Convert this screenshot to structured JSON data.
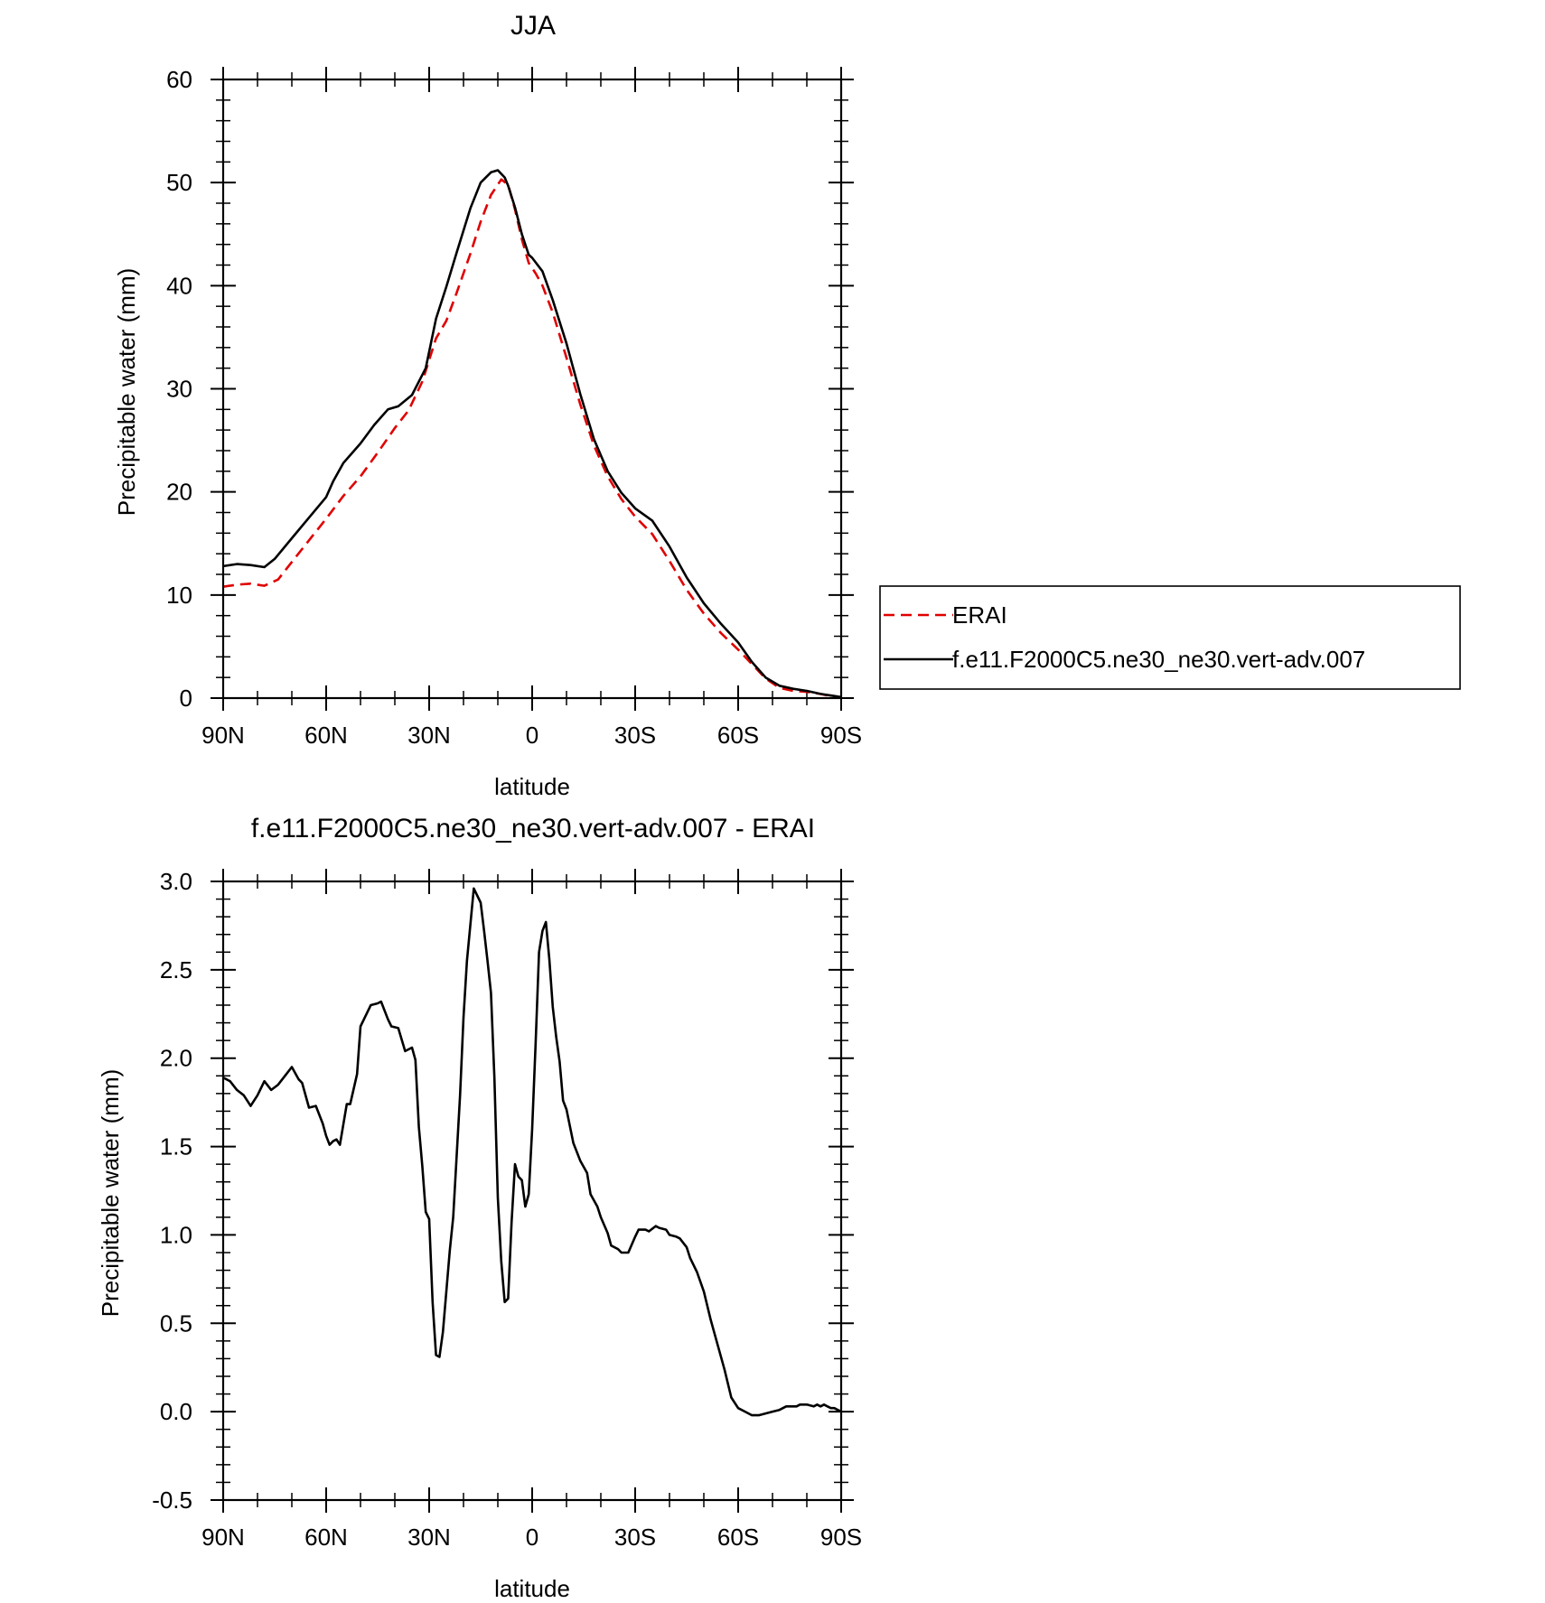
{
  "chart_data": [
    {
      "type": "line",
      "title": "JJA",
      "xlabel": "latitude",
      "ylabel": "Precipitable water (mm)",
      "xlim": [
        90,
        -90
      ],
      "ylim": [
        0,
        60
      ],
      "x_ticks": [
        {
          "value": 90,
          "label": "90N"
        },
        {
          "value": 60,
          "label": "60N"
        },
        {
          "value": 30,
          "label": "30N"
        },
        {
          "value": 0,
          "label": "0"
        },
        {
          "value": -30,
          "label": "30S"
        },
        {
          "value": -60,
          "label": "60S"
        },
        {
          "value": -90,
          "label": "90S"
        }
      ],
      "y_ticks": [
        {
          "value": 0,
          "label": "0"
        },
        {
          "value": 10,
          "label": "10"
        },
        {
          "value": 20,
          "label": "20"
        },
        {
          "value": 30,
          "label": "30"
        },
        {
          "value": 40,
          "label": "40"
        },
        {
          "value": 50,
          "label": "50"
        },
        {
          "value": 60,
          "label": "60"
        }
      ],
      "legend": {
        "placement": "right",
        "entries": [
          "ERAI",
          "f.e11.F2000C5.ne30_ne30.vert-adv.007"
        ]
      },
      "series": [
        {
          "name": "ERAI",
          "color": "#e00000",
          "dash": "dashed",
          "x": [
            90,
            86,
            82,
            78,
            74,
            70,
            65,
            60,
            55,
            50,
            45,
            40,
            36,
            32,
            28,
            25,
            22,
            18,
            15,
            12,
            9,
            7,
            5,
            3,
            1,
            -1,
            -3,
            -6,
            -10,
            -14,
            -18,
            -22,
            -26,
            -30,
            -35,
            -40,
            -45,
            -50,
            -55,
            -60,
            -64,
            -68,
            -72,
            -76,
            -80,
            -84,
            -88,
            -90
          ],
          "y": [
            10.8,
            11.0,
            11.1,
            10.9,
            11.5,
            13.2,
            15.3,
            17.4,
            19.6,
            21.5,
            23.8,
            26.2,
            27.9,
            30.7,
            34.9,
            36.6,
            39.3,
            43.1,
            46.2,
            48.8,
            50.3,
            49.8,
            47.4,
            44.5,
            42.2,
            41.2,
            40.0,
            37.4,
            33.0,
            28.5,
            24.5,
            21.5,
            19.3,
            17.6,
            15.9,
            13.3,
            10.5,
            8.2,
            6.3,
            4.7,
            3.3,
            1.9,
            1.0,
            0.7,
            0.6,
            0.4,
            0.1,
            0.1
          ]
        },
        {
          "name": "f.e11.F2000C5.ne30_ne30.vert-adv.007",
          "color": "#000000",
          "dash": "solid",
          "x": [
            90,
            86,
            82,
            78,
            75,
            70,
            65,
            60,
            58,
            55,
            50,
            46,
            42,
            39,
            35,
            31,
            28,
            25,
            22,
            18,
            15,
            12,
            10,
            8,
            7,
            5,
            3,
            1,
            0,
            -3,
            -6,
            -10,
            -14,
            -18,
            -22,
            -26,
            -30,
            -35,
            -40,
            -45,
            -50,
            -55,
            -60,
            -64,
            -68,
            -72,
            -76,
            -80,
            -84,
            -88,
            -90
          ],
          "y": [
            12.8,
            13.0,
            12.9,
            12.7,
            13.5,
            15.5,
            17.5,
            19.5,
            21.0,
            22.8,
            24.7,
            26.5,
            28.0,
            28.3,
            29.4,
            32.0,
            36.8,
            39.9,
            43.2,
            47.5,
            50.0,
            51.0,
            51.2,
            50.5,
            49.7,
            47.6,
            45.0,
            43.0,
            42.7,
            41.4,
            38.6,
            34.4,
            29.5,
            25.1,
            22.0,
            19.9,
            18.4,
            17.2,
            14.7,
            11.7,
            9.2,
            7.2,
            5.4,
            3.5,
            2.0,
            1.2,
            0.9,
            0.7,
            0.4,
            0.2,
            0.1
          ]
        }
      ]
    },
    {
      "type": "line",
      "title": "f.e11.F2000C5.ne30_ne30.vert-adv.007 - ERAI",
      "xlabel": "latitude",
      "ylabel": "Precipitable water (mm)",
      "xlim": [
        90,
        -90
      ],
      "ylim": [
        -0.5,
        3.0
      ],
      "x_ticks": [
        {
          "value": 90,
          "label": "90N"
        },
        {
          "value": 60,
          "label": "60N"
        },
        {
          "value": 30,
          "label": "30N"
        },
        {
          "value": 0,
          "label": "0"
        },
        {
          "value": -30,
          "label": "30S"
        },
        {
          "value": -60,
          "label": "60S"
        },
        {
          "value": -90,
          "label": "90S"
        }
      ],
      "y_ticks": [
        {
          "value": -0.5,
          "label": "-0.5"
        },
        {
          "value": 0.0,
          "label": "0.0"
        },
        {
          "value": 0.5,
          "label": "0.5"
        },
        {
          "value": 1.0,
          "label": "1.0"
        },
        {
          "value": 1.5,
          "label": "1.5"
        },
        {
          "value": 2.0,
          "label": "2.0"
        },
        {
          "value": 2.5,
          "label": "2.5"
        },
        {
          "value": 3.0,
          "label": "3.0"
        }
      ],
      "series": [
        {
          "color": "#000000",
          "dash": "solid",
          "x": [
            90,
            88,
            86,
            84,
            82,
            80,
            78,
            76,
            74,
            72,
            70,
            68,
            67,
            65,
            63,
            61,
            60,
            59,
            58,
            57,
            56,
            54,
            53,
            51,
            50,
            48,
            47,
            45,
            44,
            42,
            41,
            39,
            37,
            35,
            34,
            33,
            32,
            31,
            30,
            29,
            28,
            27,
            26,
            24,
            23,
            21,
            20,
            19,
            17,
            15,
            14,
            13,
            12,
            11,
            10,
            9,
            8,
            7,
            6,
            5,
            4,
            3,
            2,
            1,
            0,
            -1,
            -2,
            -3,
            -4,
            -5,
            -6,
            -7,
            -8,
            -9,
            -10,
            -12,
            -14,
            -16,
            -17,
            -19,
            -20,
            -22,
            -23,
            -25,
            -26,
            -28,
            -30,
            -31,
            -33,
            -34,
            -36,
            -37,
            -39,
            -40,
            -42,
            -43,
            -45,
            -46,
            -48,
            -50,
            -52,
            -54,
            -56,
            -58,
            -60,
            -62,
            -64,
            -66,
            -68,
            -70,
            -72,
            -74,
            -75,
            -76,
            -77,
            -78,
            -80,
            -82,
            -83,
            -84,
            -85,
            -86,
            -87,
            -88,
            -89,
            -90
          ],
          "y": [
            1.89,
            1.87,
            1.82,
            1.79,
            1.73,
            1.79,
            1.87,
            1.82,
            1.85,
            1.9,
            1.95,
            1.88,
            1.86,
            1.72,
            1.73,
            1.63,
            1.56,
            1.51,
            1.53,
            1.54,
            1.51,
            1.74,
            1.74,
            1.91,
            2.18,
            2.26,
            2.3,
            2.31,
            2.32,
            2.22,
            2.18,
            2.17,
            2.04,
            2.06,
            1.99,
            1.61,
            1.39,
            1.13,
            1.09,
            0.62,
            0.32,
            0.31,
            0.45,
            0.91,
            1.1,
            1.79,
            2.23,
            2.55,
            2.96,
            2.88,
            2.72,
            2.55,
            2.37,
            1.89,
            1.21,
            0.85,
            0.62,
            0.64,
            1.07,
            1.4,
            1.33,
            1.31,
            1.16,
            1.23,
            1.6,
            2.08,
            2.6,
            2.72,
            2.77,
            2.56,
            2.29,
            2.12,
            1.98,
            1.76,
            1.71,
            1.52,
            1.42,
            1.35,
            1.23,
            1.16,
            1.1,
            1.01,
            0.94,
            0.92,
            0.9,
            0.9,
            0.99,
            1.03,
            1.03,
            1.02,
            1.05,
            1.04,
            1.03,
            1.0,
            0.99,
            0.98,
            0.93,
            0.87,
            0.79,
            0.68,
            0.52,
            0.38,
            0.24,
            0.08,
            0.02,
            0.0,
            -0.02,
            -0.02,
            -0.01,
            0.0,
            0.01,
            0.03,
            0.03,
            0.03,
            0.03,
            0.04,
            0.04,
            0.03,
            0.04,
            0.03,
            0.04,
            0.03,
            0.02,
            0.02,
            0.01,
            0.0
          ]
        }
      ]
    }
  ]
}
